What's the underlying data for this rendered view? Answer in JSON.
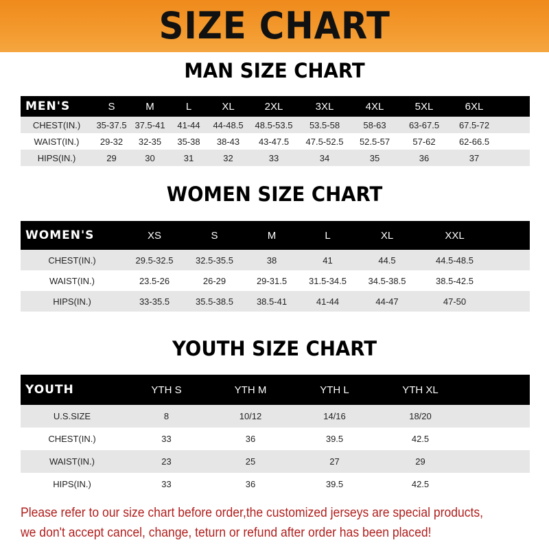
{
  "banner": {
    "title": "SIZE CHART",
    "color": "#f39a2e"
  },
  "men": {
    "title": "MAN SIZE CHART",
    "header": [
      "MEN'S",
      "S",
      "M",
      "L",
      "XL",
      "2XL",
      "3XL",
      "4XL",
      "5XL",
      "6XL"
    ],
    "rows": [
      [
        "CHEST(IN.)",
        "35-37.5",
        "37.5-41",
        "41-44",
        "44-48.5",
        "48.5-53.5",
        "53.5-58",
        "58-63",
        "63-67.5",
        "67.5-72"
      ],
      [
        "WAIST(IN.)",
        "29-32",
        "32-35",
        "35-38",
        "38-43",
        "43-47.5",
        "47.5-52.5",
        "52.5-57",
        "57-62",
        "62-66.5"
      ],
      [
        "HIPS(IN.)",
        "29",
        "30",
        "31",
        "32",
        "33",
        "34",
        "35",
        "36",
        "37"
      ]
    ]
  },
  "women": {
    "title": "WOMEN SIZE CHART",
    "header": [
      "WOMEN'S",
      "XS",
      "S",
      "M",
      "L",
      "XL",
      "XXL"
    ],
    "rows": [
      [
        "CHEST(IN.)",
        "29.5-32.5",
        "32.5-35.5",
        "38",
        "41",
        "44.5",
        "44.5-48.5"
      ],
      [
        "WAIST(IN.)",
        "23.5-26",
        "26-29",
        "29-31.5",
        "31.5-34.5",
        "34.5-38.5",
        "38.5-42.5"
      ],
      [
        "HIPS(IN.)",
        "33-35.5",
        "35.5-38.5",
        "38.5-41",
        "41-44",
        "44-47",
        "47-50"
      ]
    ]
  },
  "youth": {
    "title": "YOUTH SIZE CHART",
    "header": [
      "YOUTH",
      "YTH S",
      "YTH M",
      "YTH L",
      "YTH XL"
    ],
    "rows": [
      [
        "U.S.SIZE",
        "8",
        "10/12",
        "14/16",
        "18/20"
      ],
      [
        "CHEST(IN.)",
        "33",
        "36",
        "39.5",
        "42.5"
      ],
      [
        "WAIST(IN.)",
        "23",
        "25",
        "27",
        "29"
      ],
      [
        "HIPS(IN.)",
        "33",
        "36",
        "39.5",
        "42.5"
      ]
    ]
  },
  "note": {
    "line1": "Please refer to our size chart before order,the customized jerseys are special products,",
    "line2": "we don't accept cancel, change, teturn or refund after order has been placed!",
    "color": "#b0201e"
  }
}
